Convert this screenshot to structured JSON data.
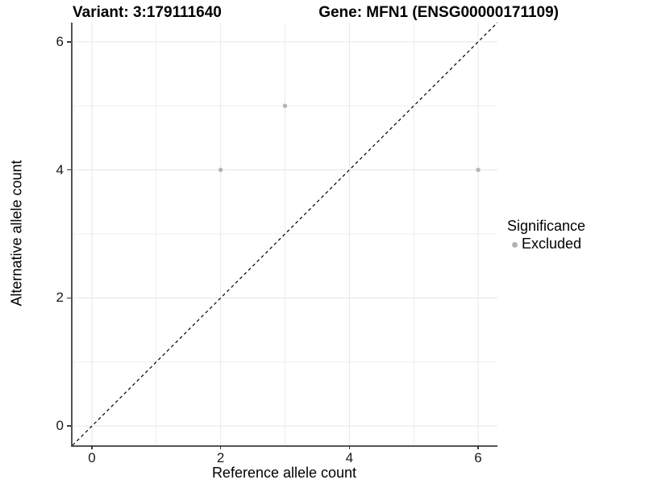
{
  "chart_data": {
    "type": "scatter",
    "title_left": "Variant: 3:179111640",
    "title_right": "Gene: MFN1 (ENSG00000171109)",
    "xlabel": "Reference allele count",
    "ylabel": "Alternative allele count",
    "xlim": [
      -0.3,
      6.3
    ],
    "ylim": [
      -0.3,
      6.3
    ],
    "x_ticks": [
      0,
      2,
      4,
      6
    ],
    "y_ticks": [
      0,
      2,
      4,
      6
    ],
    "x_minor_gridlines": [
      1,
      3,
      5
    ],
    "y_minor_gridlines": [
      1,
      3,
      5
    ],
    "grid": true,
    "legend": {
      "title": "Significance",
      "position": "right",
      "items": [
        {
          "label": "Excluded",
          "color": "#b3b3b3"
        }
      ]
    },
    "series": [
      {
        "name": "Excluded",
        "color": "#b3b3b3",
        "points": [
          {
            "x": 2,
            "y": 4
          },
          {
            "x": 3,
            "y": 5
          },
          {
            "x": 6,
            "y": 4
          }
        ]
      }
    ],
    "reference_line": {
      "description": "identity line y = x",
      "style": "dashed",
      "color": "#000000"
    }
  },
  "colors": {
    "background": "#ffffff",
    "grid_major": "#e6e6e6",
    "grid_minor": "#ededed",
    "axis_line": "#545454",
    "tick_text": "#1a1a1a",
    "point": "#b3b3b3",
    "diagonal": "#000000"
  }
}
